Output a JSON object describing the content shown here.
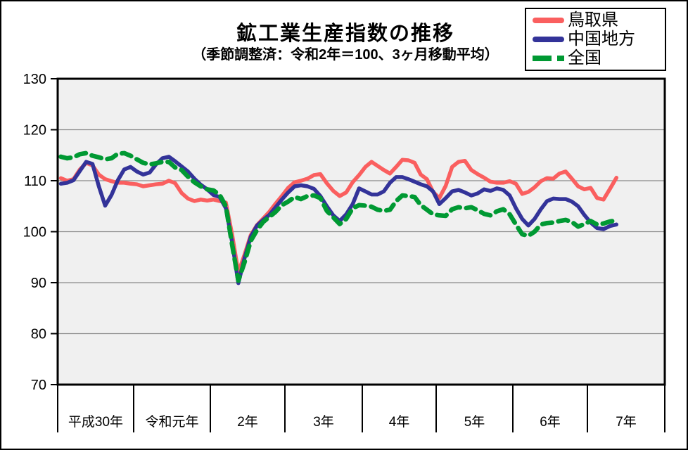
{
  "page": {
    "background": "#ffffff",
    "frame_color": "#000000"
  },
  "chart_data": {
    "type": "line",
    "title": "鉱工業生産指数の推移",
    "subtitle": "（季節調整済：令和2年＝100、3ヶ月移動平均）",
    "index_base_note": "令和2年＝100",
    "smoothing_note": "3ヶ月移動平均",
    "ylim": [
      70,
      130
    ],
    "y_ticks": [
      130,
      120,
      110,
      100,
      90,
      80,
      70
    ],
    "grid": true,
    "grid_color": "#8a8a8a",
    "plot_bg": "#f0f0f0",
    "axis_color": "#000000",
    "legend_position": "top-right",
    "x_sections": [
      "平成30年",
      "令和元年",
      "2年",
      "3年",
      "4年",
      "5年",
      "6年",
      "7年"
    ],
    "points_per_section": 12,
    "series": [
      {
        "id": "tottori",
        "name": "鳥取県",
        "color": "#fa5f5f",
        "style": "solid",
        "values": [
          110.5,
          110.0,
          110.3,
          112.2,
          113.5,
          113.0,
          111.2,
          110.3,
          109.9,
          109.6,
          109.6,
          109.4,
          109.3,
          108.9,
          109.1,
          109.3,
          109.4,
          110.0,
          109.5,
          107.6,
          106.5,
          106.0,
          106.3,
          106.1,
          106.3,
          106.0,
          105.7,
          99.5,
          92.0,
          95.5,
          99.3,
          101.3,
          102.6,
          103.9,
          105.5,
          107.0,
          108.6,
          109.7,
          110.0,
          110.4,
          111.1,
          111.3,
          109.5,
          108.0,
          107.0,
          107.7,
          109.7,
          111.1,
          112.7,
          113.7,
          112.9,
          112.1,
          111.4,
          112.7,
          114.1,
          114.0,
          113.5,
          111.2,
          110.3,
          107.8,
          106.6,
          109.0,
          112.7,
          113.7,
          113.9,
          112.1,
          111.3,
          110.6,
          109.8,
          109.6,
          109.6,
          109.9,
          109.4,
          107.4,
          107.8,
          108.7,
          109.9,
          110.5,
          110.4,
          111.4,
          111.8,
          110.4,
          108.9,
          108.3,
          108.6,
          106.6,
          106.3,
          108.4,
          110.6
        ]
      },
      {
        "id": "chugoku",
        "name": "中国地方",
        "color": "#333399",
        "style": "solid",
        "values": [
          109.4,
          109.6,
          110.1,
          111.9,
          113.7,
          113.3,
          108.9,
          105.1,
          107.2,
          110.1,
          112.2,
          112.7,
          111.8,
          111.2,
          111.6,
          113.2,
          114.4,
          114.7,
          113.8,
          112.8,
          111.8,
          110.4,
          109.2,
          108.3,
          107.2,
          106.8,
          104.6,
          98.0,
          89.9,
          94.8,
          99.0,
          101.2,
          102.3,
          103.3,
          104.8,
          106.3,
          107.7,
          108.9,
          109.1,
          108.9,
          108.4,
          107.0,
          105.0,
          103.2,
          102.1,
          103.4,
          105.4,
          108.5,
          107.9,
          107.3,
          107.3,
          107.9,
          109.6,
          110.7,
          110.7,
          110.3,
          109.8,
          109.3,
          108.9,
          107.9,
          105.4,
          106.6,
          107.9,
          108.2,
          107.7,
          107.1,
          107.5,
          108.3,
          108.0,
          108.5,
          108.2,
          107.1,
          104.6,
          102.5,
          101.2,
          102.5,
          104.4,
          106.0,
          106.5,
          106.4,
          106.4,
          105.9,
          105.0,
          103.3,
          101.8,
          100.7,
          100.5,
          101.1,
          101.4
        ]
      },
      {
        "id": "zenkoku",
        "name": "全国",
        "color": "#009933",
        "style": "dashed",
        "values": [
          114.7,
          114.4,
          114.6,
          115.2,
          115.4,
          114.9,
          114.6,
          114.2,
          114.4,
          115.3,
          115.4,
          114.9,
          114.2,
          113.5,
          113.2,
          113.4,
          113.7,
          113.7,
          112.6,
          112.1,
          110.8,
          109.7,
          108.9,
          108.3,
          108.1,
          107.2,
          105.0,
          97.5,
          90.4,
          94.0,
          98.2,
          100.3,
          101.9,
          102.9,
          103.9,
          105.2,
          105.9,
          106.8,
          106.4,
          107.0,
          107.1,
          106.6,
          104.1,
          102.8,
          101.5,
          102.5,
          104.6,
          105.2,
          105.1,
          104.9,
          104.3,
          104.1,
          104.3,
          106.0,
          107.1,
          107.0,
          106.8,
          105.2,
          104.3,
          103.4,
          103.2,
          103.1,
          104.4,
          104.8,
          104.6,
          104.8,
          104.2,
          103.5,
          103.2,
          104.0,
          104.4,
          103.4,
          101.4,
          99.5,
          99.2,
          100.0,
          101.4,
          101.7,
          101.8,
          102.1,
          102.3,
          101.9,
          101.0,
          101.5,
          102.1,
          101.4,
          101.6,
          102.0,
          102.2
        ]
      }
    ]
  }
}
